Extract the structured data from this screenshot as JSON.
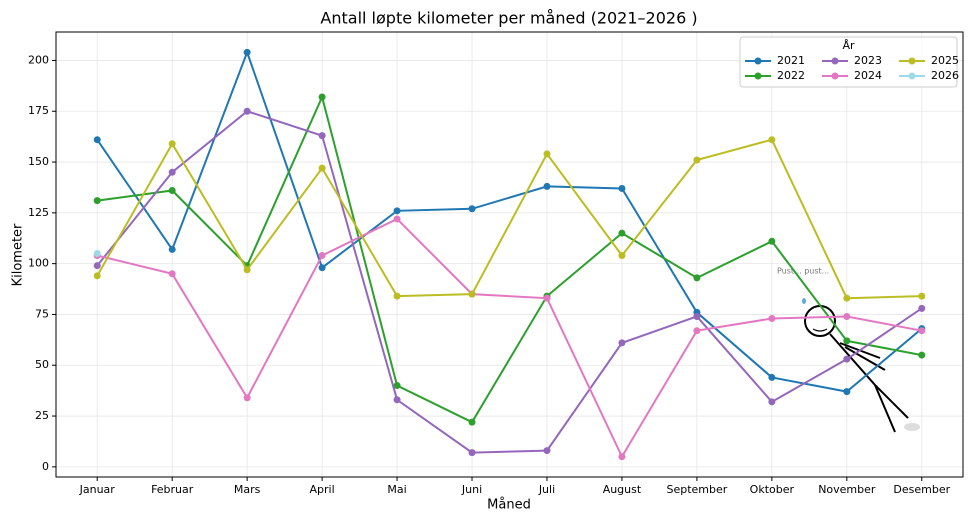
{
  "chart_data": {
    "type": "line",
    "title": "Antall løpte kilometer per måned (2021–2026 )",
    "x_label": "Måned",
    "y_label": "Kilometer",
    "categories": [
      "Januar",
      "Februar",
      "Mars",
      "April",
      "Mai",
      "Juni",
      "Juli",
      "August",
      "September",
      "Oktober",
      "November",
      "Desember"
    ],
    "series": [
      {
        "name": "2021",
        "color": "#1f77b4",
        "values": [
          161,
          107,
          204,
          98,
          126,
          127,
          138,
          137,
          76,
          44,
          37,
          68
        ]
      },
      {
        "name": "2022",
        "color": "#2ca02c",
        "values": [
          131,
          136,
          99,
          182,
          40,
          22,
          84,
          115,
          93,
          111,
          62,
          55
        ]
      },
      {
        "name": "2023",
        "color": "#9467bd",
        "values": [
          99,
          145,
          175,
          163,
          33,
          7,
          8,
          61,
          74,
          32,
          53,
          78
        ]
      },
      {
        "name": "2024",
        "color": "#e377c2",
        "values": [
          104,
          95,
          34,
          104,
          122,
          85,
          83,
          5,
          67,
          73,
          74,
          67
        ]
      },
      {
        "name": "2025",
        "color": "#bcbd22",
        "values": [
          94,
          159,
          97,
          147,
          84,
          85,
          154,
          104,
          151,
          161,
          83,
          84
        ]
      },
      {
        "name": "2026",
        "color": "#9edae5",
        "values": [
          105,
          null,
          null,
          null,
          null,
          null,
          null,
          null,
          null,
          null,
          null,
          null
        ]
      }
    ],
    "ylim": [
      -5,
      214
    ],
    "yticks": [
      0,
      25,
      50,
      75,
      100,
      125,
      150,
      175,
      200
    ],
    "grid": true,
    "legend_title": "År",
    "legend_position": "upper right",
    "legend_columns": 3,
    "annotation": "Pust... pust..."
  }
}
